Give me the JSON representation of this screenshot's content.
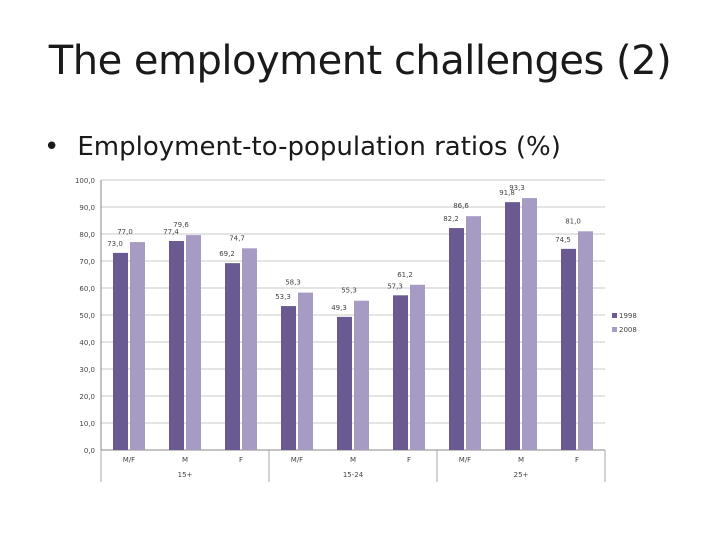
{
  "slide": {
    "title": "The employment challenges (2)",
    "bullet": "Employment-to-population ratios (%)"
  },
  "chart_data": {
    "type": "bar",
    "title": "",
    "xlabel": "",
    "ylabel": "",
    "ylim": [
      0,
      100
    ],
    "yticks": [
      "0,0",
      "10,0",
      "20,0",
      "30,0",
      "40,0",
      "50,0",
      "60,0",
      "70,0",
      "80,0",
      "90,0",
      "100,0"
    ],
    "grid": true,
    "legend_position": "right",
    "categories": [
      "M/F",
      "M",
      "F",
      "M/F",
      "M",
      "F",
      "M/F",
      "M",
      "F"
    ],
    "groups": [
      {
        "label": "15+",
        "center_category": 1
      },
      {
        "label": "15-24",
        "center_category": 4
      },
      {
        "label": "25+",
        "center_category": 7
      }
    ],
    "series": [
      {
        "name": "1998",
        "color": "#6b5a91",
        "values": [
          73.0,
          77.4,
          69.2,
          53.3,
          49.3,
          57.3,
          82.2,
          91.8,
          74.5
        ],
        "labels": [
          "73,0",
          "77,4",
          "69,2",
          "53,3",
          "49,3",
          "57,3",
          "82,2",
          "91,8",
          "74,5"
        ]
      },
      {
        "name": "2008",
        "color": "#a79bc3",
        "values": [
          77.0,
          79.6,
          74.7,
          58.3,
          55.3,
          61.2,
          86.6,
          93.3,
          81.0
        ],
        "labels": [
          "77,0",
          "79,6",
          "74,7",
          "58,3",
          "55,3",
          "61,2",
          "86,6",
          "93,3",
          "81,0"
        ]
      }
    ]
  }
}
